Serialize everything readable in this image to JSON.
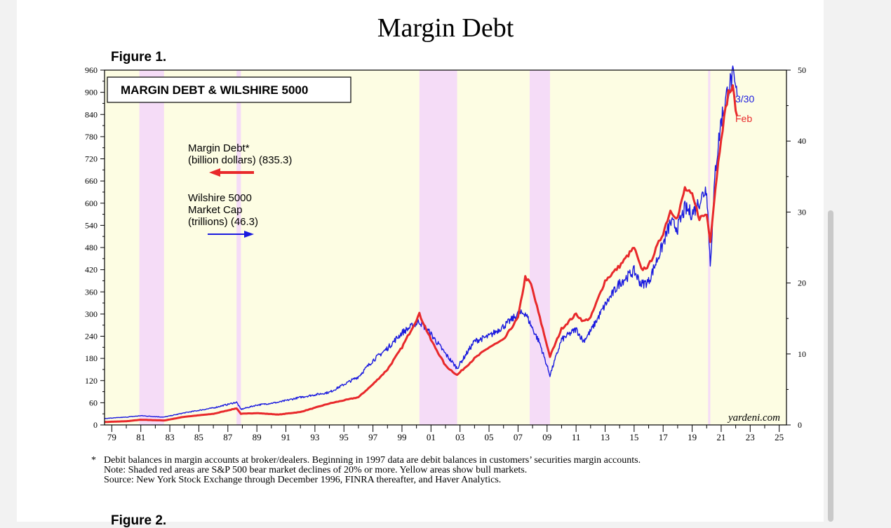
{
  "page": {
    "figure_label": "Figure 1.",
    "next_figure_label": "Figure 2."
  },
  "chart_data": {
    "type": "line",
    "title": "Margin Debt",
    "box_title": "MARGIN DEBT & WILSHIRE 5000",
    "colors": {
      "margin_debt": "#e8292b",
      "wilshire": "#1a1adf",
      "bull": "#fdfde3",
      "bear": "#f5dcf7"
    },
    "x_range": [
      1978.5,
      2025.5
    ],
    "x_tick_labels": [
      "79",
      "81",
      "83",
      "85",
      "87",
      "89",
      "91",
      "93",
      "95",
      "97",
      "99",
      "01",
      "03",
      "05",
      "07",
      "09",
      "11",
      "13",
      "15",
      "17",
      "19",
      "21",
      "23",
      "25"
    ],
    "x_tick_years": [
      1979,
      1981,
      1983,
      1985,
      1987,
      1989,
      1991,
      1993,
      1995,
      1997,
      1999,
      2001,
      2003,
      2005,
      2007,
      2009,
      2011,
      2013,
      2015,
      2017,
      2019,
      2021,
      2023,
      2025
    ],
    "left_axis": {
      "range": [
        0,
        960
      ],
      "ticks": [
        "0",
        "60",
        "120",
        "180",
        "240",
        "300",
        "360",
        "420",
        "480",
        "540",
        "600",
        "660",
        "720",
        "780",
        "840",
        "900",
        "960"
      ]
    },
    "right_axis": {
      "range": [
        0,
        50
      ],
      "ticks": [
        "0",
        "10",
        "20",
        "30",
        "40",
        "50"
      ]
    },
    "bear_markets": [
      [
        1980.9,
        1982.6
      ],
      [
        1987.6,
        1987.9
      ],
      [
        2000.2,
        2002.8
      ],
      [
        2007.8,
        2009.2
      ],
      [
        2020.1,
        2020.25
      ]
    ],
    "legend": {
      "margin_line1": "Margin Debt*",
      "margin_line2": "(billion dollars) (835.3)",
      "wil_line1": "Wilshire 5000",
      "wil_line2": "Market Cap",
      "wil_line3": "(trillions) (46.3)"
    },
    "end_labels": {
      "wilshire": "3/30",
      "margin": "Feb"
    },
    "source_mark": "yardeni.com",
    "series": [
      {
        "name": "Margin Debt (billion dollars)",
        "axis": "left",
        "x": [
          1978.5,
          1980,
          1981,
          1982.6,
          1984,
          1986,
          1987.6,
          1987.9,
          1989,
          1990.5,
          1992,
          1994,
          1996,
          1997,
          1998,
          1999,
          2000.2,
          2001,
          2002,
          2002.8,
          2004,
          2005,
          2006,
          2007,
          2007.5,
          2007.9,
          2008.5,
          2009.2,
          2010,
          2011,
          2011.5,
          2012,
          2013,
          2014,
          2015,
          2015.5,
          2016,
          2017,
          2017.5,
          2018,
          2018.5,
          2019,
          2019.5,
          2020,
          2020.25,
          2020.6,
          2021,
          2021.5,
          2021.8,
          2022.1
        ],
        "y": [
          8,
          10,
          14,
          12,
          22,
          30,
          45,
          30,
          32,
          28,
          35,
          58,
          75,
          110,
          150,
          210,
          300,
          230,
          160,
          135,
          180,
          210,
          230,
          290,
          400,
          380,
          290,
          185,
          260,
          300,
          280,
          290,
          390,
          430,
          480,
          420,
          430,
          520,
          580,
          560,
          640,
          620,
          560,
          570,
          500,
          640,
          780,
          900,
          910,
          835.3
        ]
      },
      {
        "name": "Wilshire 5000 Market Cap (trillions)",
        "axis": "right",
        "x": [
          1978.5,
          1980,
          1981,
          1982.6,
          1984,
          1986,
          1987.6,
          1987.9,
          1989,
          1990.5,
          1992,
          1994,
          1996,
          1997,
          1998,
          1999,
          2000.2,
          2001,
          2002,
          2002.8,
          2004,
          2005,
          2006,
          2007,
          2007.5,
          2007.9,
          2008.5,
          2009.2,
          2010,
          2011,
          2011.5,
          2012,
          2013,
          2014,
          2015,
          2015.5,
          2016,
          2017,
          2017.5,
          2018,
          2018.5,
          2019,
          2019.5,
          2020,
          2020.25,
          2020.6,
          2021,
          2021.5,
          2021.8,
          2022.1
        ],
        "y": [
          0.9,
          1.1,
          1.3,
          1.1,
          1.7,
          2.4,
          3.2,
          2.2,
          2.8,
          3.2,
          3.9,
          4.6,
          6.8,
          9.1,
          10.8,
          13.0,
          14.6,
          12.8,
          10.0,
          8.0,
          11.8,
          12.5,
          13.9,
          15.6,
          15.8,
          14.0,
          11.5,
          7.0,
          12.0,
          13.5,
          11.8,
          13.2,
          16.9,
          20.0,
          21.7,
          19.8,
          20.2,
          25.5,
          28.5,
          27.8,
          30.5,
          29.8,
          31.5,
          33.5,
          22.5,
          36.0,
          43.0,
          47.5,
          49.0,
          46.3
        ]
      }
    ],
    "footnote": {
      "star": "*",
      "line1": "Debit balances in margin accounts at broker/dealers. Beginning in 1997 data are debit balances in customers’ securities margin accounts.",
      "line2": "Note: Shaded red areas are S&P 500 bear market declines of 20% or more. Yellow areas show bull markets.",
      "line3": "Source: New York Stock Exchange through December 1996, FINRA thereafter, and Haver Analytics."
    }
  }
}
